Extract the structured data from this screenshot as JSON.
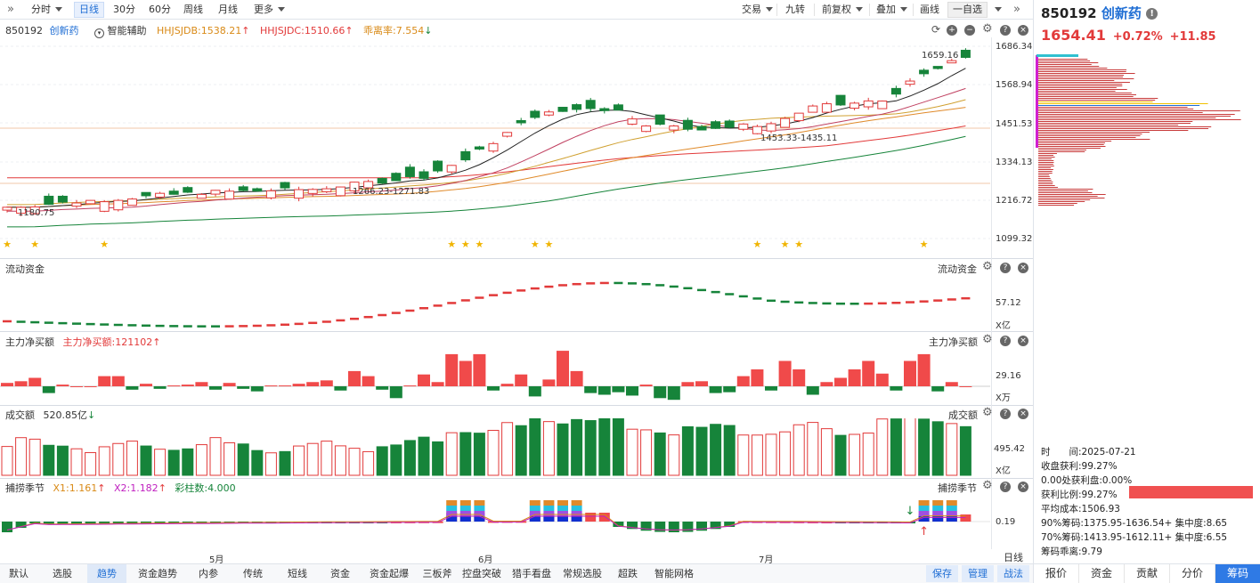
{
  "toolbar": {
    "periods": [
      "分时",
      "日线",
      "30分",
      "60分",
      "周线",
      "月线",
      "更多"
    ],
    "selected": "日线",
    "right": [
      "交易",
      "九转",
      "前复权",
      "叠加",
      "画线",
      "一自选"
    ]
  },
  "stock": {
    "code": "850192",
    "name": "创新药",
    "price": "1654.41",
    "change_pct": "+0.72%",
    "change": "+11.85"
  },
  "main_panel": {
    "assist": "智能辅助",
    "ind1": "HHJSJDB:1538.21",
    "ind2": "HHJSJDC:1510.66",
    "ind3": "乖离率:7.554",
    "y_labels": [
      "1686.34",
      "1568.94",
      "1451.53",
      "1334.13",
      "1216.72",
      "1099.32"
    ],
    "high_label": "1659.16",
    "low_label": "1180.75",
    "range_label1": "1266.23-1271.83",
    "range_label2": "1453.33-1435.11"
  },
  "panels": {
    "flow": {
      "title": "流动资金",
      "right_title": "流动资金",
      "y": "57.12",
      "unit": "X亿"
    },
    "net": {
      "title": "主力净买额",
      "value": "主力净买额:121102",
      "right_title": "主力净买额",
      "y": "29.16",
      "unit": "X万"
    },
    "vol": {
      "title": "成交额",
      "value": "520.85亿",
      "right_title": "成交额",
      "y": "495.42",
      "unit": "X亿"
    },
    "season": {
      "title": "捕捞季节",
      "x1": "X1:1.161",
      "x2": "X2:1.182",
      "col": "彩柱数:4.000",
      "right_title": "捕捞季节",
      "y": "0.19"
    }
  },
  "months": [
    "5月",
    "6月",
    "7月"
  ],
  "bottom_tabs": [
    "默认",
    "选股",
    "趋势",
    "资金趋势",
    "内参",
    "传统",
    "短线",
    "资金",
    "资金起爆",
    "三板斧",
    "控盘突破",
    "猎手看盘",
    "常规选股",
    "超跌",
    "智能网格"
  ],
  "bottom_selected": "趋势",
  "bottom_right": [
    "保存",
    "管理",
    "战法"
  ],
  "daily_label": "日线",
  "chip": {
    "time_label": "时　　间:2025-07-21",
    "profit_close": "收盘获利:99.27%",
    "profit_zero": "0.00处获利盘:0.00%",
    "profit_ratio": "获利比例:99.27%",
    "avg_cost": "平均成本:1506.93",
    "c90": "90%筹码:1375.95-1636.54+ 集中度:8.65",
    "c70": "70%筹码:1413.95-1612.11+ 集中度:6.55",
    "deviation": "筹码乖离:9.79"
  },
  "side_tabs": [
    "报价",
    "资金",
    "贡献",
    "分价",
    "筹码"
  ],
  "side_selected": "筹码",
  "colors": {
    "up": "#e23a3a",
    "down": "#16843a",
    "accent": "#1f6ed4"
  }
}
